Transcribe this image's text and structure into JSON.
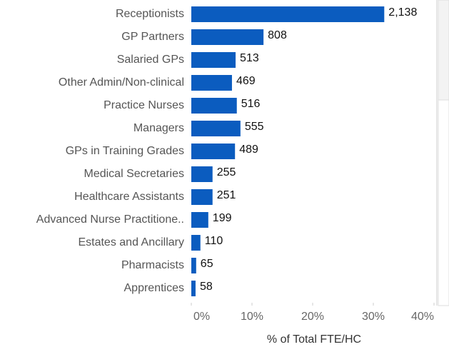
{
  "chart_data": {
    "type": "hbar",
    "categories": [
      "Receptionists",
      "GP Partners",
      "Salaried GPs",
      "Other Admin/Non-clinical",
      "Practice Nurses",
      "Managers",
      "GPs in Training Grades",
      "Medical Secretaries",
      "Healthcare Assistants",
      "Advanced Nurse Practitione..",
      "Estates and Ancillary",
      "Pharmacists",
      "Apprentices"
    ],
    "values": [
      31.8,
      11.9,
      7.3,
      6.7,
      7.5,
      8.1,
      7.2,
      3.5,
      3.5,
      2.8,
      1.5,
      0.8,
      0.7
    ],
    "count_labels": [
      "2,138",
      "808",
      "513",
      "469",
      "516",
      "555",
      "489",
      "255",
      "251",
      "199",
      "110",
      "65",
      "58"
    ],
    "color": "#0b5cbf",
    "xlabel": "% of Total FTE/HC",
    "xlim": [
      0,
      40
    ],
    "xticks": [
      {
        "value": 0,
        "label": "0%"
      },
      {
        "value": 10,
        "label": "10%"
      },
      {
        "value": 20,
        "label": "20%"
      },
      {
        "value": 30,
        "label": "30%"
      },
      {
        "value": 40,
        "label": "40%"
      }
    ]
  }
}
